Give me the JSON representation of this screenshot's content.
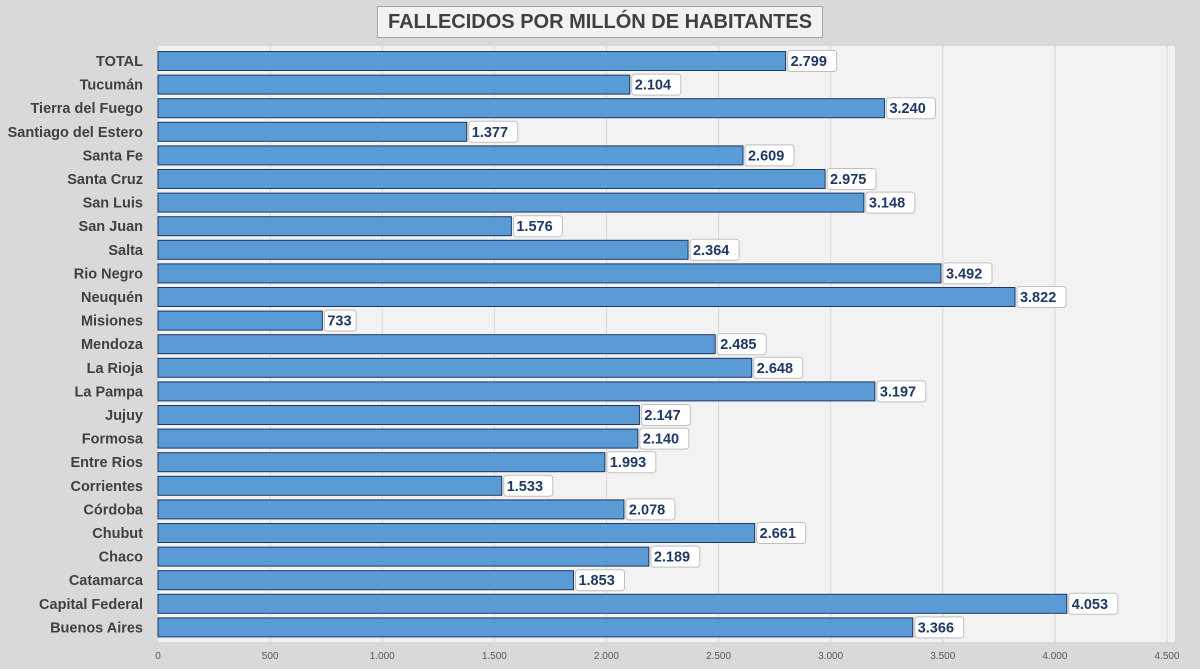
{
  "chart_data": {
    "type": "bar",
    "orientation": "horizontal",
    "title": "FALLECIDOS POR MILLÓN DE HABITANTES",
    "categories": [
      "TOTAL",
      "Tucumán",
      "Tierra del Fuego",
      "Santiago del Estero",
      "Santa Fe",
      "Santa Cruz",
      "San Luis",
      "San Juan",
      "Salta",
      "Rio Negro",
      "Neuquén",
      "Misiones",
      "Mendoza",
      "La Rioja",
      "La Pampa",
      "Jujuy",
      "Formosa",
      "Entre Rios",
      "Corrientes",
      "Córdoba",
      "Chubut",
      "Chaco",
      "Catamarca",
      "Capital Federal",
      "Buenos Aires"
    ],
    "values": [
      2799,
      2104,
      3240,
      1377,
      2609,
      2975,
      3148,
      1576,
      2364,
      3492,
      3822,
      733,
      2485,
      2648,
      3197,
      2147,
      2140,
      1993,
      1533,
      2078,
      2661,
      2189,
      1853,
      4053,
      3366
    ],
    "value_labels": [
      "2.799",
      "2.104",
      "3.240",
      "1.377",
      "2.609",
      "2.975",
      "3.148",
      "1.576",
      "2.364",
      "3.492",
      "3.822",
      "733",
      "2.485",
      "2.648",
      "3.197",
      "2.147",
      "2.140",
      "1.993",
      "1.533",
      "2.078",
      "2.661",
      "2.189",
      "1.853",
      "4.053",
      "3.366"
    ],
    "xticks": [
      0,
      500,
      1000,
      1500,
      2000,
      2500,
      3000,
      3500,
      4000,
      4500
    ],
    "xtick_labels": [
      "0",
      "500",
      "1.000",
      "1.500",
      "2.000",
      "2.500",
      "3.000",
      "3.500",
      "4.000",
      "4.500"
    ],
    "xlim": [
      0,
      4500
    ],
    "grid": true,
    "legend": "none",
    "colors": {
      "bar_fill": "#5b9bd5",
      "bar_stroke": "#1f3864",
      "plot_background": "#f2f2f2",
      "page_background": "#d9d9d9",
      "value_text": "#1f3864"
    }
  }
}
